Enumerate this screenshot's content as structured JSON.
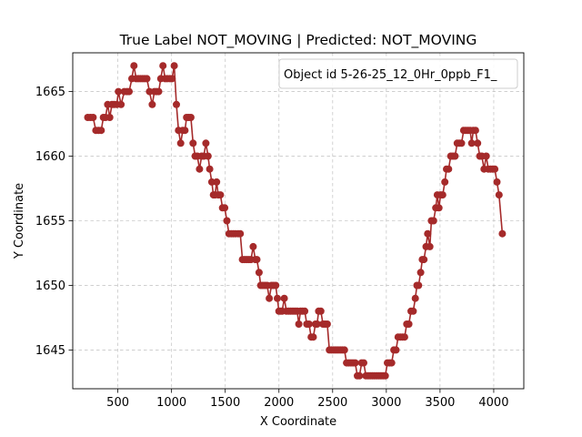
{
  "chart_data": {
    "type": "line",
    "title": "True Label NOT_MOVING | Predicted: NOT_MOVING",
    "xlabel": "X Coordinate",
    "ylabel": "Y Coordinate",
    "xlim": [
      80,
      4280
    ],
    "ylim": [
      1642,
      1668
    ],
    "xticks": [
      500,
      1000,
      1500,
      2000,
      2500,
      3000,
      3500,
      4000
    ],
    "yticks": [
      1645,
      1650,
      1655,
      1660,
      1665
    ],
    "grid": true,
    "legend_position": "top-right",
    "color": "#a52a2a",
    "series": [
      {
        "name": "Object id 5-26-25_12_0Hr_0ppb_F1_",
        "points": [
          [
            220,
            1663
          ],
          [
            245,
            1663
          ],
          [
            270,
            1663
          ],
          [
            295,
            1662
          ],
          [
            320,
            1662
          ],
          [
            345,
            1662
          ],
          [
            365,
            1663
          ],
          [
            385,
            1663
          ],
          [
            405,
            1664
          ],
          [
            425,
            1663
          ],
          [
            445,
            1664
          ],
          [
            465,
            1664
          ],
          [
            490,
            1664
          ],
          [
            505,
            1665
          ],
          [
            530,
            1664
          ],
          [
            560,
            1665
          ],
          [
            585,
            1665
          ],
          [
            605,
            1665
          ],
          [
            630,
            1666
          ],
          [
            650,
            1667
          ],
          [
            670,
            1666
          ],
          [
            690,
            1666
          ],
          [
            710,
            1666
          ],
          [
            730,
            1666
          ],
          [
            750,
            1666
          ],
          [
            770,
            1666
          ],
          [
            795,
            1665
          ],
          [
            820,
            1664
          ],
          [
            840,
            1665
          ],
          [
            860,
            1665
          ],
          [
            880,
            1665
          ],
          [
            900,
            1666
          ],
          [
            920,
            1667
          ],
          [
            940,
            1666
          ],
          [
            960,
            1666
          ],
          [
            985,
            1666
          ],
          [
            1005,
            1666
          ],
          [
            1025,
            1667
          ],
          [
            1045,
            1664
          ],
          [
            1065,
            1662
          ],
          [
            1085,
            1661
          ],
          [
            1105,
            1662
          ],
          [
            1125,
            1662
          ],
          [
            1140,
            1663
          ],
          [
            1160,
            1663
          ],
          [
            1180,
            1663
          ],
          [
            1200,
            1661
          ],
          [
            1220,
            1660
          ],
          [
            1240,
            1660
          ],
          [
            1260,
            1659
          ],
          [
            1280,
            1660
          ],
          [
            1300,
            1660
          ],
          [
            1320,
            1661
          ],
          [
            1340,
            1660
          ],
          [
            1355,
            1659
          ],
          [
            1375,
            1658
          ],
          [
            1390,
            1657
          ],
          [
            1405,
            1657
          ],
          [
            1420,
            1658
          ],
          [
            1435,
            1657
          ],
          [
            1455,
            1657
          ],
          [
            1475,
            1656
          ],
          [
            1495,
            1656
          ],
          [
            1515,
            1655
          ],
          [
            1535,
            1654
          ],
          [
            1555,
            1654
          ],
          [
            1575,
            1654
          ],
          [
            1595,
            1654
          ],
          [
            1620,
            1654
          ],
          [
            1640,
            1654
          ],
          [
            1660,
            1652
          ],
          [
            1680,
            1652
          ],
          [
            1700,
            1652
          ],
          [
            1720,
            1652
          ],
          [
            1740,
            1652
          ],
          [
            1760,
            1653
          ],
          [
            1780,
            1652
          ],
          [
            1795,
            1652
          ],
          [
            1815,
            1651
          ],
          [
            1830,
            1650
          ],
          [
            1850,
            1650
          ],
          [
            1870,
            1650
          ],
          [
            1890,
            1650
          ],
          [
            1910,
            1649
          ],
          [
            1930,
            1650
          ],
          [
            1950,
            1650
          ],
          [
            1970,
            1650
          ],
          [
            1985,
            1649
          ],
          [
            2000,
            1648
          ],
          [
            2015,
            1648
          ],
          [
            2030,
            1648
          ],
          [
            2050,
            1649
          ],
          [
            2070,
            1648
          ],
          [
            2090,
            1648
          ],
          [
            2110,
            1648
          ],
          [
            2130,
            1648
          ],
          [
            2150,
            1648
          ],
          [
            2170,
            1648
          ],
          [
            2185,
            1647
          ],
          [
            2200,
            1648
          ],
          [
            2220,
            1648
          ],
          [
            2240,
            1648
          ],
          [
            2260,
            1647
          ],
          [
            2280,
            1647
          ],
          [
            2300,
            1646
          ],
          [
            2320,
            1646
          ],
          [
            2340,
            1647
          ],
          [
            2355,
            1647
          ],
          [
            2370,
            1648
          ],
          [
            2390,
            1648
          ],
          [
            2410,
            1647
          ],
          [
            2430,
            1647
          ],
          [
            2450,
            1647
          ],
          [
            2470,
            1645
          ],
          [
            2490,
            1645
          ],
          [
            2510,
            1645
          ],
          [
            2530,
            1645
          ],
          [
            2550,
            1645
          ],
          [
            2570,
            1645
          ],
          [
            2590,
            1645
          ],
          [
            2610,
            1645
          ],
          [
            2630,
            1644
          ],
          [
            2650,
            1644
          ],
          [
            2670,
            1644
          ],
          [
            2690,
            1644
          ],
          [
            2710,
            1644
          ],
          [
            2730,
            1643
          ],
          [
            2750,
            1643
          ],
          [
            2770,
            1644
          ],
          [
            2790,
            1644
          ],
          [
            2810,
            1643
          ],
          [
            2830,
            1643
          ],
          [
            2850,
            1643
          ],
          [
            2870,
            1643
          ],
          [
            2890,
            1643
          ],
          [
            2910,
            1643
          ],
          [
            2930,
            1643
          ],
          [
            2950,
            1643
          ],
          [
            2970,
            1643
          ],
          [
            2990,
            1643
          ],
          [
            3010,
            1644
          ],
          [
            3030,
            1644
          ],
          [
            3050,
            1644
          ],
          [
            3070,
            1645
          ],
          [
            3090,
            1645
          ],
          [
            3110,
            1646
          ],
          [
            3130,
            1646
          ],
          [
            3150,
            1646
          ],
          [
            3170,
            1646
          ],
          [
            3190,
            1647
          ],
          [
            3210,
            1647
          ],
          [
            3230,
            1648
          ],
          [
            3250,
            1648
          ],
          [
            3270,
            1649
          ],
          [
            3285,
            1650
          ],
          [
            3300,
            1650
          ],
          [
            3320,
            1651
          ],
          [
            3335,
            1652
          ],
          [
            3350,
            1652
          ],
          [
            3370,
            1653
          ],
          [
            3385,
            1654
          ],
          [
            3405,
            1653
          ],
          [
            3420,
            1655
          ],
          [
            3440,
            1655
          ],
          [
            3460,
            1656
          ],
          [
            3475,
            1657
          ],
          [
            3490,
            1656
          ],
          [
            3505,
            1657
          ],
          [
            3525,
            1657
          ],
          [
            3545,
            1658
          ],
          [
            3560,
            1659
          ],
          [
            3580,
            1659
          ],
          [
            3600,
            1660
          ],
          [
            3620,
            1660
          ],
          [
            3640,
            1660
          ],
          [
            3660,
            1661
          ],
          [
            3680,
            1661
          ],
          [
            3700,
            1661
          ],
          [
            3720,
            1662
          ],
          [
            3740,
            1662
          ],
          [
            3760,
            1662
          ],
          [
            3780,
            1662
          ],
          [
            3795,
            1661
          ],
          [
            3810,
            1662
          ],
          [
            3830,
            1662
          ],
          [
            3850,
            1661
          ],
          [
            3870,
            1660
          ],
          [
            3890,
            1660
          ],
          [
            3910,
            1659
          ],
          [
            3930,
            1660
          ],
          [
            3950,
            1659
          ],
          [
            3970,
            1659
          ],
          [
            3990,
            1659
          ],
          [
            4010,
            1659
          ],
          [
            4030,
            1658
          ],
          [
            4050,
            1657
          ],
          [
            4080,
            1654
          ]
        ]
      }
    ]
  }
}
